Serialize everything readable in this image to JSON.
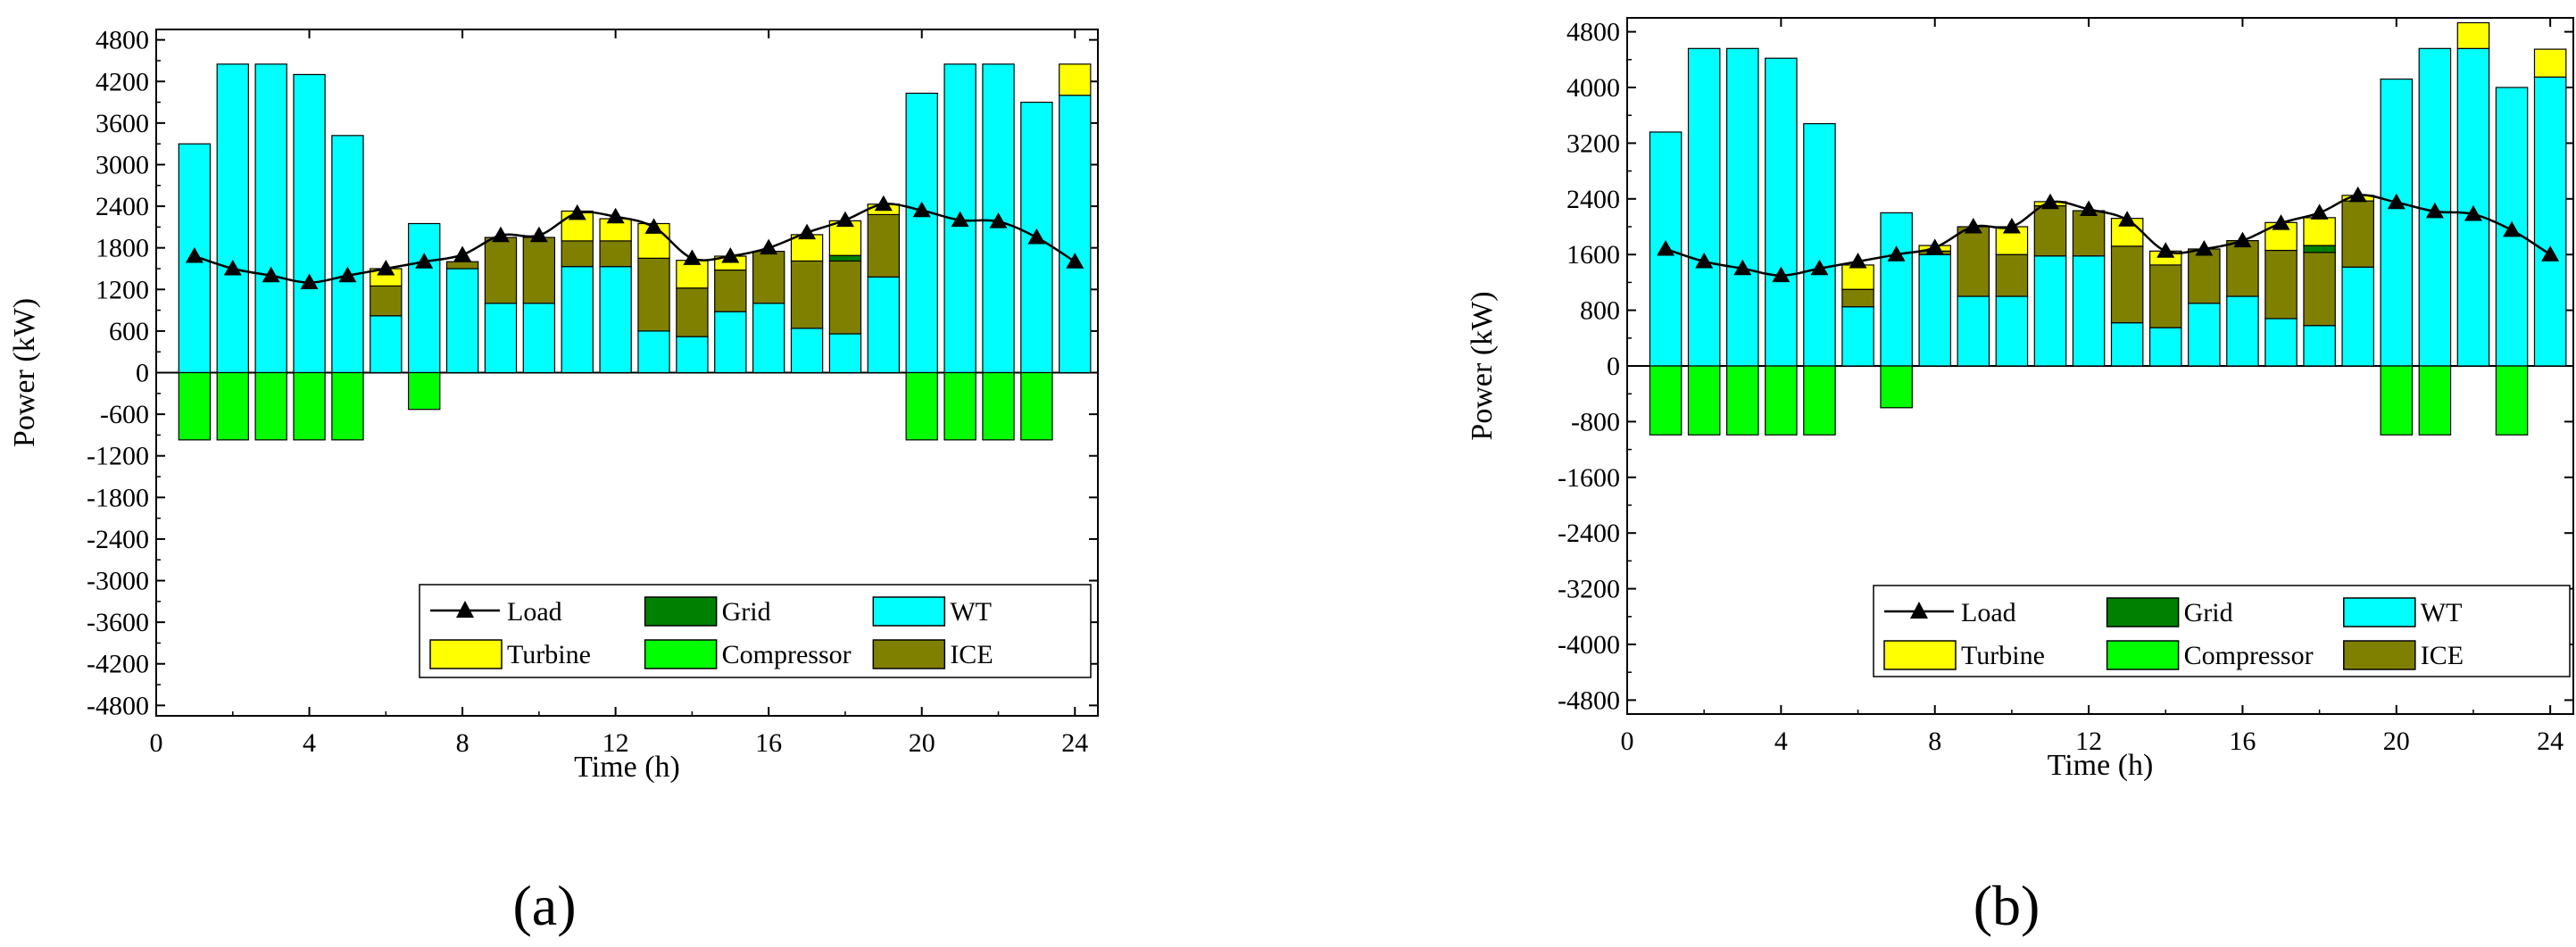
{
  "colors": {
    "WT": "#00ffff",
    "Grid": "#008000",
    "Turbine": "#ffff00",
    "Compressor": "#00ff00",
    "ICE": "#808000",
    "Load": "#000000"
  },
  "legend_order": [
    "Load",
    "Grid",
    "WT",
    "Turbine",
    "Compressor",
    "ICE"
  ],
  "chart_data": [
    {
      "panel_label": "(a)",
      "type": "bar",
      "stacked": true,
      "xlabel": "Time (h)",
      "ylabel": "Power (kW)",
      "xlim": [
        0,
        24.6
      ],
      "ylim": [
        -4950,
        4950
      ],
      "xticks": [
        0,
        4,
        8,
        12,
        16,
        20,
        24
      ],
      "yticks": [
        -4800,
        -4200,
        -3600,
        -3000,
        -2400,
        -1800,
        -1200,
        -600,
        0,
        600,
        1200,
        1800,
        2400,
        3000,
        3600,
        4200,
        4800
      ],
      "x": [
        1,
        2,
        3,
        4,
        5,
        6,
        7,
        8,
        9,
        10,
        11,
        12,
        13,
        14,
        15,
        16,
        17,
        18,
        19,
        20,
        21,
        22,
        23,
        24
      ],
      "series": [
        {
          "name": "WT",
          "values": [
            3300,
            4450,
            4450,
            4300,
            3420,
            820,
            2150,
            1500,
            1000,
            1000,
            1530,
            1530,
            600,
            520,
            880,
            1000,
            640,
            560,
            1380,
            4030,
            4450,
            4450,
            3900,
            4000
          ]
        },
        {
          "name": "ICE",
          "values": [
            0,
            0,
            0,
            0,
            0,
            430,
            0,
            100,
            950,
            950,
            370,
            370,
            1050,
            700,
            600,
            750,
            970,
            1050,
            900,
            0,
            0,
            0,
            0,
            0
          ]
        },
        {
          "name": "Grid",
          "values": [
            0,
            0,
            0,
            0,
            0,
            0,
            0,
            0,
            0,
            0,
            0,
            0,
            0,
            0,
            0,
            0,
            0,
            80,
            0,
            0,
            0,
            0,
            0,
            0
          ]
        },
        {
          "name": "Turbine",
          "values": [
            0,
            0,
            0,
            0,
            0,
            250,
            0,
            0,
            0,
            0,
            430,
            320,
            500,
            400,
            200,
            0,
            380,
            500,
            150,
            0,
            0,
            0,
            0,
            450
          ]
        },
        {
          "name": "Compressor",
          "values": [
            -970,
            -970,
            -970,
            -970,
            -970,
            0,
            -530,
            0,
            0,
            0,
            0,
            0,
            0,
            0,
            0,
            0,
            0,
            0,
            0,
            -970,
            -970,
            -970,
            -970,
            0
          ]
        },
        {
          "name": "Load",
          "type": "line",
          "values": [
            1680,
            1500,
            1400,
            1300,
            1400,
            1500,
            1600,
            1700,
            1980,
            1980,
            2300,
            2250,
            2100,
            1650,
            1680,
            1800,
            2020,
            2200,
            2430,
            2340,
            2200,
            2180,
            1950,
            1600
          ]
        }
      ],
      "legend": [
        {
          "name": "Load",
          "label": "Load"
        },
        {
          "name": "Grid",
          "label": "Grid"
        },
        {
          "name": "WT",
          "label": "WT"
        },
        {
          "name": "Turbine",
          "label": "Turbine"
        },
        {
          "name": "Compressor",
          "label": "Compressor"
        },
        {
          "name": "ICE",
          "label": "ICE"
        }
      ]
    },
    {
      "panel_label": "(b)",
      "type": "bar",
      "stacked": true,
      "xlabel": "Time (h)",
      "ylabel": "Power (kW)",
      "xlim": [
        0,
        24.6
      ],
      "ylim": [
        -5000,
        5000
      ],
      "xticks": [
        0,
        4,
        8,
        12,
        16,
        20,
        24
      ],
      "yticks": [
        -4800,
        -4000,
        -3200,
        -2400,
        -1600,
        -800,
        0,
        800,
        1600,
        2400,
        3200,
        4000,
        4800
      ],
      "x": [
        1,
        2,
        3,
        4,
        5,
        6,
        7,
        8,
        9,
        10,
        11,
        12,
        13,
        14,
        15,
        16,
        17,
        18,
        19,
        20,
        21,
        22,
        23,
        24
      ],
      "series": [
        {
          "name": "WT",
          "values": [
            3360,
            4560,
            4560,
            4420,
            3480,
            850,
            2200,
            1600,
            1000,
            1000,
            1580,
            1580,
            620,
            550,
            900,
            1000,
            680,
            580,
            1420,
            4120,
            4560,
            4560,
            4000,
            4150
          ]
        },
        {
          "name": "ICE",
          "values": [
            0,
            0,
            0,
            0,
            0,
            250,
            0,
            50,
            1000,
            600,
            720,
            650,
            1100,
            900,
            780,
            800,
            980,
            1050,
            950,
            0,
            0,
            0,
            0,
            0
          ]
        },
        {
          "name": "Grid",
          "values": [
            0,
            0,
            0,
            0,
            0,
            0,
            0,
            0,
            0,
            0,
            0,
            0,
            0,
            0,
            0,
            0,
            0,
            100,
            0,
            0,
            0,
            0,
            0,
            0
          ]
        },
        {
          "name": "Turbine",
          "values": [
            0,
            0,
            0,
            0,
            0,
            350,
            0,
            80,
            0,
            400,
            60,
            0,
            400,
            200,
            0,
            0,
            400,
            400,
            80,
            0,
            0,
            370,
            0,
            400
          ]
        },
        {
          "name": "Compressor",
          "values": [
            -990,
            -990,
            -990,
            -990,
            -990,
            0,
            -600,
            0,
            0,
            0,
            0,
            0,
            0,
            0,
            0,
            0,
            0,
            0,
            0,
            -990,
            -990,
            0,
            -990,
            0
          ]
        },
        {
          "name": "Load",
          "type": "line",
          "values": [
            1680,
            1500,
            1400,
            1300,
            1400,
            1500,
            1600,
            1700,
            2000,
            2000,
            2350,
            2250,
            2100,
            1650,
            1680,
            1800,
            2050,
            2200,
            2450,
            2350,
            2220,
            2180,
            1950,
            1600
          ]
        }
      ],
      "legend": [
        {
          "name": "Load",
          "label": "Load"
        },
        {
          "name": "Grid",
          "label": "Grid"
        },
        {
          "name": "WT",
          "label": "WT"
        },
        {
          "name": "Turbine",
          "label": "Turbine"
        },
        {
          "name": "Compressor",
          "label": "Compressor"
        },
        {
          "name": "ICE",
          "label": "ICE"
        }
      ]
    }
  ]
}
